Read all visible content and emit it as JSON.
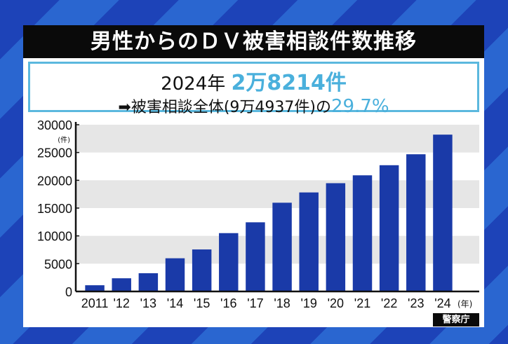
{
  "title": "男性からのＤＶ被害相談件数推移",
  "highlight": {
    "year": "2024年",
    "count": "2万8214件",
    "arrow_text": "➡被害相談全体(9万4937件)の",
    "percent": "29.7%"
  },
  "source": "警察庁",
  "colors": {
    "bar": "#1a3aa8",
    "accent": "#4ab0dc",
    "title_bg": "#0a0a0a",
    "band": "#e6e6e6"
  },
  "chart_data": {
    "type": "bar",
    "categories": [
      "2011",
      "'12",
      "'13",
      "'14",
      "'15",
      "'16",
      "'17",
      "'18",
      "'19",
      "'20",
      "'21",
      "'22",
      "'23",
      "'24"
    ],
    "values": [
      1118,
      2372,
      3281,
      5971,
      7557,
      10496,
      12440,
      15964,
      17815,
      19478,
      20895,
      22714,
      24684,
      28214
    ],
    "ylim": [
      0,
      30000
    ],
    "yticks": [
      "0",
      "5000",
      "10000",
      "15000",
      "20000",
      "25000",
      "30000"
    ],
    "yunit": "(件)",
    "xunit": "(年)",
    "grid": "alternating horizontal bands"
  }
}
